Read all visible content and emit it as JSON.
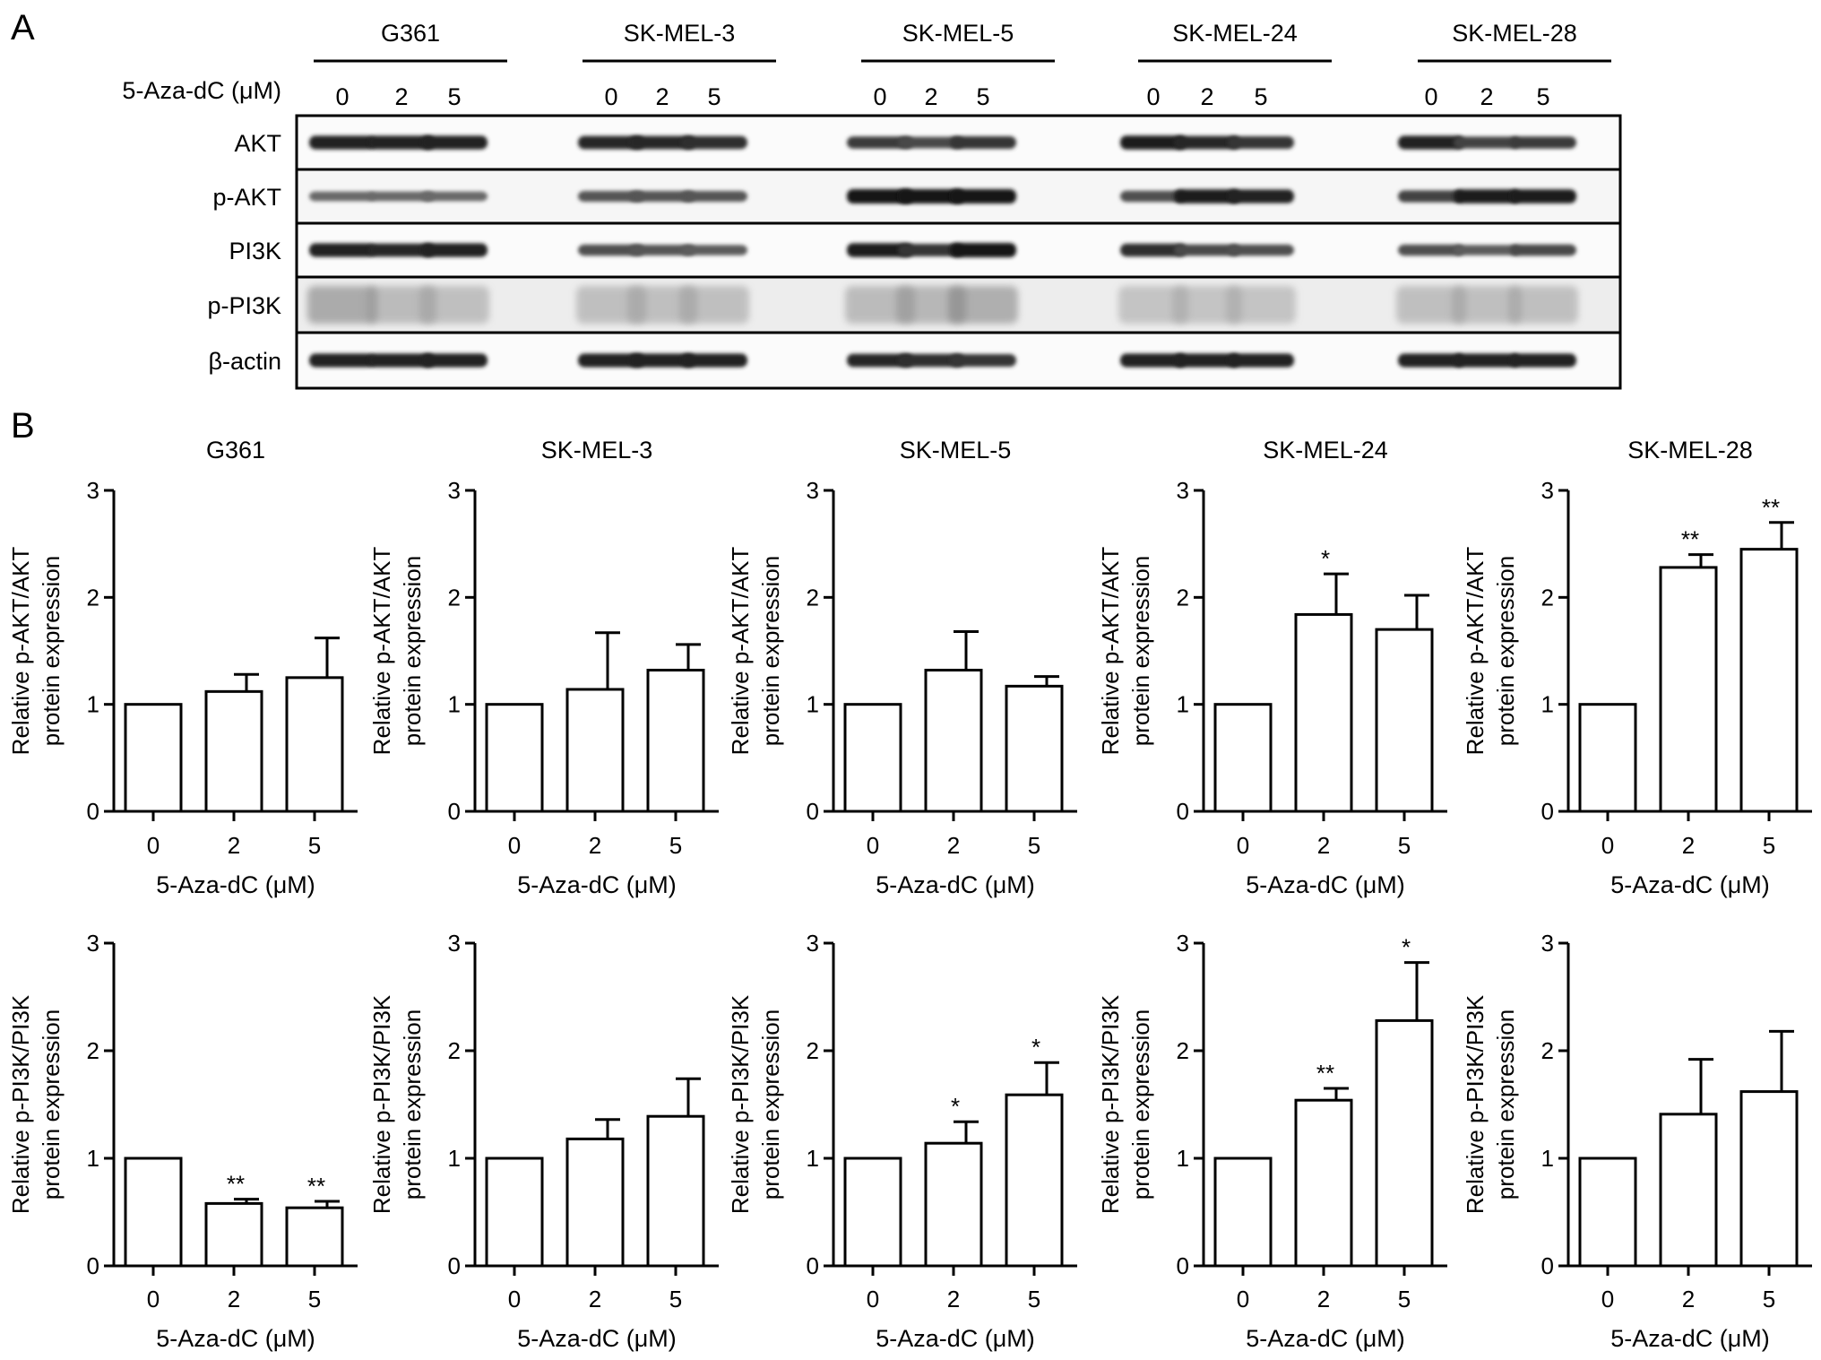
{
  "panel_labels": [
    "A",
    "B"
  ],
  "western_blot": {
    "treatment_label": "5-Aza-dC (μM)",
    "cell_lines": [
      "G361",
      "SK-MEL-3",
      "SK-MEL-5",
      "SK-MEL-24",
      "SK-MEL-28"
    ],
    "doses": [
      "0",
      "2",
      "5"
    ],
    "rows": [
      "AKT",
      "p-AKT",
      "PI3K",
      "p-PI3K",
      "β-actin"
    ],
    "band_intensity": {
      "AKT": [
        [
          0.9,
          0.9,
          0.9
        ],
        [
          0.85,
          0.85,
          0.8
        ],
        [
          0.7,
          0.6,
          0.75
        ],
        [
          0.95,
          0.85,
          0.75
        ],
        [
          0.9,
          0.65,
          0.7
        ]
      ],
      "p-AKT": [
        [
          0.35,
          0.35,
          0.35
        ],
        [
          0.5,
          0.5,
          0.5
        ],
        [
          1,
          1,
          1
        ],
        [
          0.55,
          0.95,
          0.9
        ],
        [
          0.65,
          0.95,
          0.95
        ]
      ],
      "PI3K": [
        [
          0.9,
          0.85,
          0.9
        ],
        [
          0.55,
          0.5,
          0.45
        ],
        [
          0.95,
          0.75,
          1
        ],
        [
          0.8,
          0.6,
          0.55
        ],
        [
          0.55,
          0.45,
          0.6
        ]
      ],
      "p-PI3K": [
        [
          0.55,
          0.35,
          0.3
        ],
        [
          0.3,
          0.3,
          0.3
        ],
        [
          0.35,
          0.4,
          0.5
        ],
        [
          0.25,
          0.25,
          0.25
        ],
        [
          0.3,
          0.3,
          0.3
        ]
      ],
      "β-actin": [
        [
          0.9,
          0.9,
          0.9
        ],
        [
          0.9,
          0.9,
          0.9
        ],
        [
          0.85,
          0.8,
          0.75
        ],
        [
          0.9,
          0.9,
          0.9
        ],
        [
          0.9,
          0.9,
          0.9
        ]
      ]
    }
  },
  "chart_data": [
    {
      "type": "bar",
      "row": "p-AKT/AKT",
      "title": "G361",
      "categories": [
        "0",
        "2",
        "5"
      ],
      "values": [
        1,
        1.12,
        1.25
      ],
      "errors": [
        0,
        0.16,
        0.37
      ],
      "significance": [
        "",
        "",
        ""
      ],
      "xlabel": "5-Aza-dC (μM)",
      "ylabel": [
        "Relative p-AKT/AKT",
        "protein expression"
      ],
      "ylim": [
        0,
        3
      ],
      "yticks": [
        "0",
        "1",
        "2",
        "3"
      ]
    },
    {
      "type": "bar",
      "row": "p-AKT/AKT",
      "title": "SK-MEL-3",
      "categories": [
        "0",
        "2",
        "5"
      ],
      "values": [
        1,
        1.14,
        1.32
      ],
      "errors": [
        0,
        0.53,
        0.24
      ],
      "significance": [
        "",
        "",
        ""
      ],
      "xlabel": "5-Aza-dC (μM)",
      "ylabel": [
        "Relative p-AKT/AKT",
        "protein expression"
      ],
      "ylim": [
        0,
        3
      ],
      "yticks": [
        "0",
        "1",
        "2",
        "3"
      ]
    },
    {
      "type": "bar",
      "row": "p-AKT/AKT",
      "title": "SK-MEL-5",
      "categories": [
        "0",
        "2",
        "5"
      ],
      "values": [
        1,
        1.32,
        1.17
      ],
      "errors": [
        0,
        0.36,
        0.09
      ],
      "significance": [
        "",
        "",
        ""
      ],
      "xlabel": "5-Aza-dC (μM)",
      "ylabel": [
        "Relative p-AKT/AKT",
        "protein expression"
      ],
      "ylim": [
        0,
        3
      ],
      "yticks": [
        "0",
        "1",
        "2",
        "3"
      ]
    },
    {
      "type": "bar",
      "row": "p-AKT/AKT",
      "title": "SK-MEL-24",
      "categories": [
        "0",
        "2",
        "5"
      ],
      "values": [
        1,
        1.84,
        1.7
      ],
      "errors": [
        0,
        0.38,
        0.32
      ],
      "significance": [
        "",
        "*",
        ""
      ],
      "xlabel": "5-Aza-dC (μM)",
      "ylabel": [
        "Relative p-AKT/AKT",
        "protein expression"
      ],
      "ylim": [
        0,
        3
      ],
      "yticks": [
        "0",
        "1",
        "2",
        "3"
      ]
    },
    {
      "type": "bar",
      "row": "p-AKT/AKT",
      "title": "SK-MEL-28",
      "categories": [
        "0",
        "2",
        "5"
      ],
      "values": [
        1,
        2.28,
        2.45
      ],
      "errors": [
        0,
        0.12,
        0.25
      ],
      "significance": [
        "",
        "**",
        "**"
      ],
      "xlabel": "5-Aza-dC (μM)",
      "ylabel": [
        "Relative p-AKT/AKT",
        "protein expression"
      ],
      "ylim": [
        0,
        3
      ],
      "yticks": [
        "0",
        "1",
        "2",
        "3"
      ]
    },
    {
      "type": "bar",
      "row": "p-PI3K/PI3K",
      "title": "",
      "categories": [
        "0",
        "2",
        "5"
      ],
      "values": [
        1,
        0.58,
        0.54
      ],
      "errors": [
        0,
        0.04,
        0.06
      ],
      "significance": [
        "",
        "**",
        "**"
      ],
      "xlabel": "5-Aza-dC (μM)",
      "ylabel": [
        "Relative p-PI3K/PI3K",
        "protein expression"
      ],
      "ylim": [
        0,
        3
      ],
      "yticks": [
        "0",
        "1",
        "2",
        "3"
      ]
    },
    {
      "type": "bar",
      "row": "p-PI3K/PI3K",
      "title": "",
      "categories": [
        "0",
        "2",
        "5"
      ],
      "values": [
        1,
        1.18,
        1.39
      ],
      "errors": [
        0,
        0.18,
        0.35
      ],
      "significance": [
        "",
        "",
        ""
      ],
      "xlabel": "5-Aza-dC (μM)",
      "ylabel": [
        "Relative p-PI3K/PI3K",
        "protein expression"
      ],
      "ylim": [
        0,
        3
      ],
      "yticks": [
        "0",
        "1",
        "2",
        "3"
      ]
    },
    {
      "type": "bar",
      "row": "p-PI3K/PI3K",
      "title": "",
      "categories": [
        "0",
        "2",
        "5"
      ],
      "values": [
        1,
        1.14,
        1.59
      ],
      "errors": [
        0,
        0.2,
        0.3
      ],
      "significance": [
        "",
        "*",
        "*"
      ],
      "xlabel": "5-Aza-dC (μM)",
      "ylabel": [
        "Relative p-PI3K/PI3K",
        "protein expression"
      ],
      "ylim": [
        0,
        3
      ],
      "yticks": [
        "0",
        "1",
        "2",
        "3"
      ]
    },
    {
      "type": "bar",
      "row": "p-PI3K/PI3K",
      "title": "",
      "categories": [
        "0",
        "2",
        "5"
      ],
      "values": [
        1,
        1.54,
        2.28
      ],
      "errors": [
        0,
        0.11,
        0.54
      ],
      "significance": [
        "",
        "**",
        "*"
      ],
      "xlabel": "5-Aza-dC (μM)",
      "ylabel": [
        "Relative p-PI3K/PI3K",
        "protein expression"
      ],
      "ylim": [
        0,
        3
      ],
      "yticks": [
        "0",
        "1",
        "2",
        "3"
      ]
    },
    {
      "type": "bar",
      "row": "p-PI3K/PI3K",
      "title": "",
      "categories": [
        "0",
        "2",
        "5"
      ],
      "values": [
        1,
        1.41,
        1.62
      ],
      "errors": [
        0,
        0.51,
        0.56
      ],
      "significance": [
        "",
        "",
        ""
      ],
      "xlabel": "5-Aza-dC (μM)",
      "ylabel": [
        "Relative p-PI3K/PI3K",
        "protein expression"
      ],
      "ylim": [
        0,
        3
      ],
      "yticks": [
        "0",
        "1",
        "2",
        "3"
      ]
    }
  ]
}
